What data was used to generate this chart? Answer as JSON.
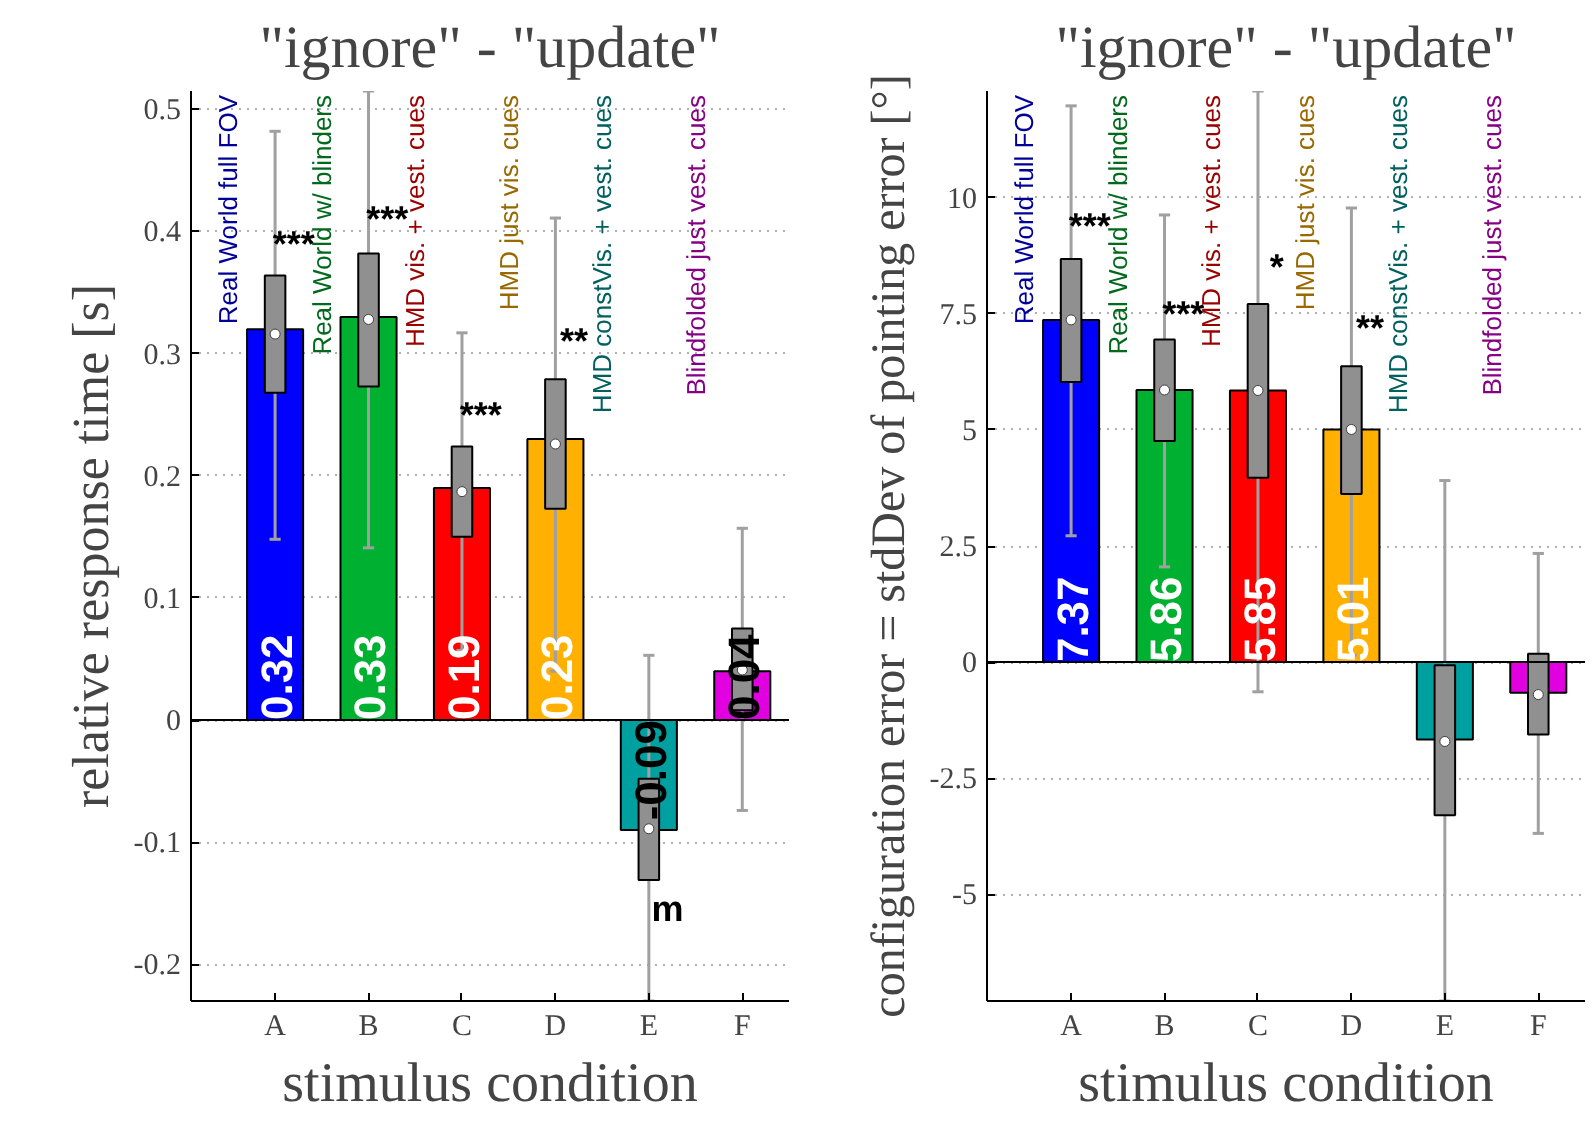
{
  "chart_data": [
    {
      "type": "bar",
      "title": "\"ignore\" - \"update\"",
      "xlabel": "stimulus condition",
      "ylabel": "relative response time [s]",
      "categories": [
        "A",
        "B",
        "C",
        "D",
        "E",
        "F"
      ],
      "series": [
        {
          "colors": [
            "#0000ff",
            "#00b030",
            "#ff0000",
            "#ffb000",
            "#00a0a0",
            "#e000e0"
          ],
          "values": [
            0.32,
            0.33,
            0.19,
            0.23,
            -0.09,
            0.04
          ],
          "value_labels": [
            "0.32",
            "0.33",
            "0.19",
            "0.23",
            "-0.09",
            "0.04"
          ]
        },
        {
          "type": "box",
          "color": "#909090",
          "boxes": [
            {
              "low": 0.148,
              "q1": 0.268,
              "median": 0.316,
              "q3": 0.364,
              "high": 0.482
            },
            {
              "low": 0.141,
              "q1": 0.273,
              "median": 0.328,
              "q3": 0.382,
              "high": 0.515
            },
            {
              "low": 0.057,
              "q1": 0.15,
              "median": 0.187,
              "q3": 0.224,
              "high": 0.317
            },
            {
              "low": 0.04,
              "q1": 0.173,
              "median": 0.226,
              "q3": 0.279,
              "high": 0.411
            },
            {
              "low": -0.23,
              "q1": -0.131,
              "median": -0.089,
              "q3": -0.048,
              "high": 0.053
            },
            {
              "low": -0.074,
              "q1": 0.008,
              "median": 0.041,
              "q3": 0.075,
              "high": 0.157
            }
          ]
        }
      ],
      "ylim": [
        -0.23,
        0.515
      ],
      "yticks": [
        -0.2,
        -0.1,
        0,
        0.1,
        0.2,
        0.3,
        0.4,
        0.5
      ],
      "grid": "y",
      "annotations": [
        "Real World full FOV",
        "Real World w/ blinders",
        "HMD vis. + vest. cues",
        "HMD just vis. cues",
        "HMD constVis. + vest. cues",
        "Blindfolded just vest. cues",
        {
          "text": "***",
          "x": "A",
          "y": 0.39
        },
        {
          "text": "***",
          "x": "B",
          "y": 0.41
        },
        {
          "text": "***",
          "x": "C",
          "y": 0.25
        },
        {
          "text": "**",
          "x": "D",
          "y": 0.31
        },
        {
          "text": "m",
          "x": "E",
          "y": -0.155
        }
      ]
    },
    {
      "type": "bar",
      "title": "\"ignore\" - \"update\"",
      "xlabel": "stimulus condition",
      "ylabel": "configuration error = stdDev of pointing error [°]",
      "categories": [
        "A",
        "B",
        "C",
        "D",
        "E",
        "F"
      ],
      "series": [
        {
          "colors": [
            "#0000ff",
            "#00b030",
            "#ff0000",
            "#ffb000",
            "#00a0a0",
            "#e000e0"
          ],
          "values": [
            7.37,
            5.86,
            5.85,
            5.01,
            -1.67,
            -0.66
          ],
          "value_labels": [
            "7.37",
            "5.86",
            "5.85",
            "5.01",
            null,
            null
          ]
        },
        {
          "type": "box",
          "color": "#909090",
          "boxes": [
            {
              "low": 2.72,
              "q1": 6.03,
              "median": 7.37,
              "q3": 8.68,
              "high": 11.98
            },
            {
              "low": 2.05,
              "q1": 4.76,
              "median": 5.86,
              "q3": 6.95,
              "high": 9.63
            },
            {
              "low": -0.64,
              "q1": 3.97,
              "median": 5.85,
              "q3": 7.71,
              "high": 12.3
            },
            {
              "low": 0.15,
              "q1": 3.62,
              "median": 5.01,
              "q3": 6.37,
              "high": 9.78
            },
            {
              "low": -7.3,
              "q1": -3.3,
              "median": -1.71,
              "q3": -0.07,
              "high": 3.91
            },
            {
              "low": -3.69,
              "q1": -1.56,
              "median": -0.7,
              "q3": 0.18,
              "high": 2.34
            }
          ]
        }
      ],
      "ylim": [
        -7.3,
        12.3
      ],
      "yticks": [
        -5,
        -2.5,
        0,
        2.5,
        5,
        7.5,
        10
      ],
      "grid": "y",
      "annotations": [
        "Real World full FOV",
        "Real World w/ blinders",
        "HMD vis. + vest. cues",
        "HMD just vis. cues",
        "HMD constVis. + vest. cues",
        "Blindfolded just vest. cues",
        {
          "text": "***",
          "x": "A",
          "y": 9.4
        },
        {
          "text": "***",
          "x": "B",
          "y": 7.5
        },
        {
          "text": "*",
          "x": "C",
          "y": 8.5
        },
        {
          "text": "**",
          "x": "D",
          "y": 7.2
        }
      ]
    }
  ]
}
